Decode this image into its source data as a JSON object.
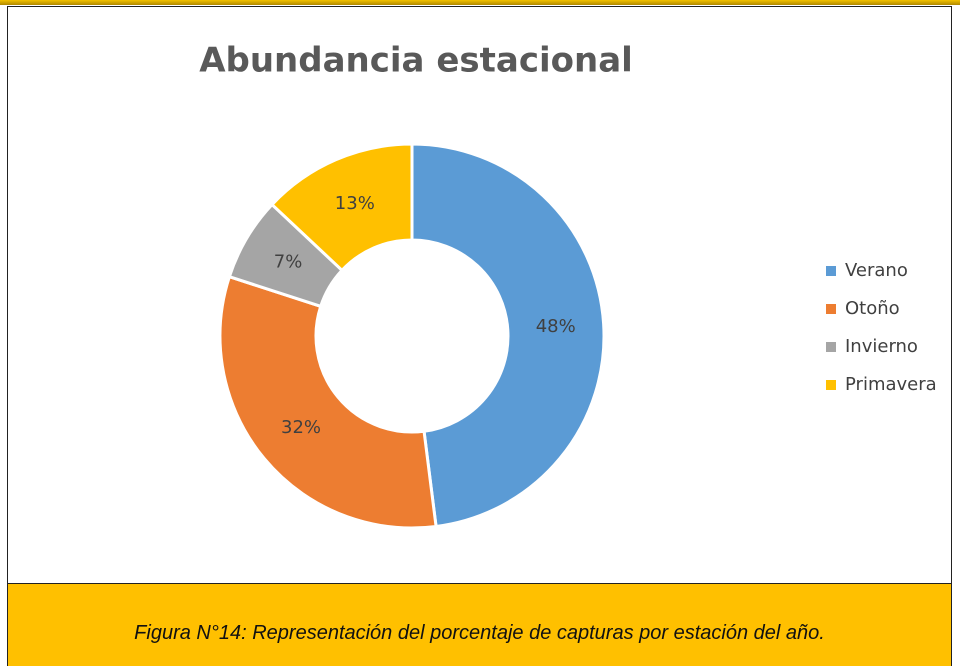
{
  "chart_data": {
    "type": "pie",
    "donut": true,
    "title": "Abundancia estacional",
    "categories": [
      "Verano",
      "Otoño",
      "Invierno",
      "Primavera"
    ],
    "values": [
      48,
      32,
      7,
      13
    ],
    "value_labels": [
      "48%",
      "32%",
      "7%",
      "13%"
    ],
    "colors": [
      "#5b9bd5",
      "#ed7d31",
      "#a5a5a5",
      "#ffc000"
    ],
    "legend": "right"
  },
  "caption": "Figura N°14: Representación del porcentaje de capturas por estación del año."
}
